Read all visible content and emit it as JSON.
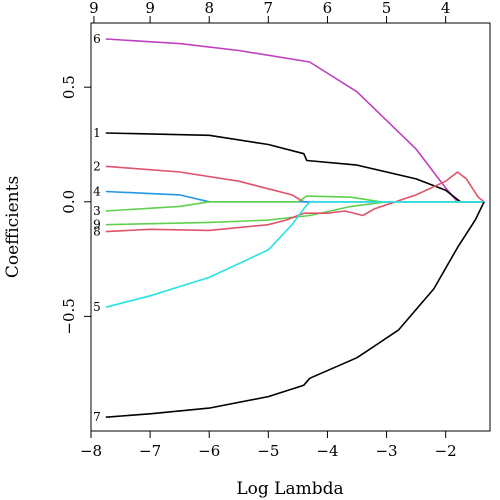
{
  "chart_data": {
    "type": "line",
    "xlabel": "Log Lambda",
    "ylabel": "Coefficients",
    "xlim": [
      -8.0,
      -1.25
    ],
    "ylim": [
      -1.0,
      0.78
    ],
    "x_ticks": [
      -8,
      -7,
      -6,
      -5,
      -4,
      -3,
      -2
    ],
    "y_ticks": [
      -0.5,
      0.0,
      0.5
    ],
    "top_axis": {
      "ticks": [
        {
          "x": -7.95,
          "label": "9"
        },
        {
          "x": -7.0,
          "label": "9"
        },
        {
          "x": -6.0,
          "label": "8"
        },
        {
          "x": -5.0,
          "label": "7"
        },
        {
          "x": -4.0,
          "label": "6"
        },
        {
          "x": -3.0,
          "label": "5"
        },
        {
          "x": -2.0,
          "label": "4"
        }
      ]
    },
    "series": [
      {
        "label": "6",
        "color": "#bf3fbf",
        "points": [
          [
            -7.75,
            0.71
          ],
          [
            -6.5,
            0.69
          ],
          [
            -5.5,
            0.66
          ],
          [
            -4.3,
            0.61
          ],
          [
            -3.5,
            0.48
          ],
          [
            -2.5,
            0.23
          ],
          [
            -2.0,
            0.06
          ],
          [
            -1.8,
            0.0
          ],
          [
            -1.35,
            0.0
          ]
        ]
      },
      {
        "label": "1",
        "color": "#000000",
        "points": [
          [
            -7.75,
            0.3
          ],
          [
            -6.0,
            0.29
          ],
          [
            -5.0,
            0.25
          ],
          [
            -4.4,
            0.21
          ],
          [
            -4.35,
            0.18
          ],
          [
            -3.5,
            0.16
          ],
          [
            -2.5,
            0.1
          ],
          [
            -2.0,
            0.05
          ],
          [
            -1.75,
            0.0
          ],
          [
            -1.35,
            0.0
          ]
        ]
      },
      {
        "label": "2",
        "color": "#df536b",
        "points": [
          [
            -7.75,
            0.155
          ],
          [
            -6.5,
            0.13
          ],
          [
            -5.5,
            0.09
          ],
          [
            -4.6,
            0.03
          ],
          [
            -4.4,
            0.0
          ],
          [
            -3.5,
            0.0
          ],
          [
            -1.35,
            0.0
          ]
        ]
      },
      {
        "label": "4",
        "color": "#2297e6",
        "points": [
          [
            -7.75,
            0.045
          ],
          [
            -6.5,
            0.03
          ],
          [
            -6.0,
            0.0
          ],
          [
            -1.35,
            0.0
          ]
        ]
      },
      {
        "label": "3",
        "color": "#61d04f",
        "points": [
          [
            -7.75,
            -0.04
          ],
          [
            -6.5,
            -0.02
          ],
          [
            -6.0,
            0.0
          ],
          [
            -4.5,
            0.0
          ],
          [
            -4.35,
            0.025
          ],
          [
            -3.6,
            0.02
          ],
          [
            -3.1,
            0.0
          ],
          [
            -1.35,
            0.0
          ]
        ]
      },
      {
        "label": "9",
        "color": "#61d04f",
        "points": [
          [
            -7.75,
            -0.1
          ],
          [
            -6.0,
            -0.09
          ],
          [
            -5.0,
            -0.08
          ],
          [
            -4.3,
            -0.06
          ],
          [
            -3.6,
            -0.02
          ],
          [
            -3.0,
            0.0
          ],
          [
            -1.35,
            0.0
          ]
        ]
      },
      {
        "label": "8",
        "color": "#df536b",
        "points": [
          [
            -7.75,
            -0.13
          ],
          [
            -7.0,
            -0.12
          ],
          [
            -6.0,
            -0.125
          ],
          [
            -5.0,
            -0.1
          ],
          [
            -4.7,
            -0.08
          ],
          [
            -4.4,
            -0.05
          ],
          [
            -4.0,
            -0.05
          ],
          [
            -3.7,
            -0.04
          ],
          [
            -3.4,
            -0.06
          ],
          [
            -3.2,
            -0.03
          ],
          [
            -2.5,
            0.03
          ],
          [
            -2.0,
            0.09
          ],
          [
            -1.8,
            0.13
          ],
          [
            -1.65,
            0.1
          ],
          [
            -1.45,
            0.02
          ],
          [
            -1.35,
            0.0
          ]
        ]
      },
      {
        "label": "5",
        "color": "#28e2e5",
        "points": [
          [
            -7.75,
            -0.46
          ],
          [
            -7.0,
            -0.41
          ],
          [
            -6.0,
            -0.33
          ],
          [
            -5.0,
            -0.21
          ],
          [
            -4.6,
            -0.1
          ],
          [
            -4.4,
            -0.03
          ],
          [
            -4.3,
            0.0
          ],
          [
            -1.35,
            0.0
          ]
        ]
      },
      {
        "label": "7",
        "color": "#000000",
        "points": [
          [
            -7.75,
            -0.94
          ],
          [
            -7.0,
            -0.925
          ],
          [
            -6.0,
            -0.9
          ],
          [
            -5.0,
            -0.85
          ],
          [
            -4.4,
            -0.8
          ],
          [
            -4.3,
            -0.77
          ],
          [
            -3.5,
            -0.68
          ],
          [
            -2.8,
            -0.56
          ],
          [
            -2.2,
            -0.38
          ],
          [
            -1.8,
            -0.2
          ],
          [
            -1.5,
            -0.08
          ],
          [
            -1.35,
            0.0
          ]
        ]
      }
    ]
  }
}
